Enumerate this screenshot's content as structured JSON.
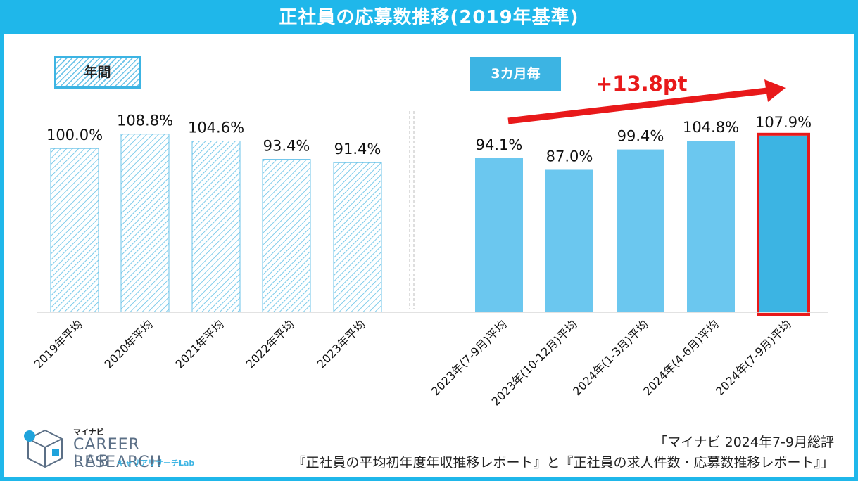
{
  "title": "正社員の応募数推移(2019年基準)",
  "legend": {
    "annual": "年間",
    "quarterly": "3カ月毎"
  },
  "delta_label": "+13.8pt",
  "source": {
    "line1": "「マイナビ 2024年7-9月総評",
    "line2": "『正社員の平均初年度年収推移レポート』と『正社員の求人件数・応募数推移レポート』」"
  },
  "logo": {
    "brand": "マイナビ",
    "name1": "CAREER RESEARCH",
    "name2": "LAB",
    "kana": "キャリアリサーチLab"
  },
  "colors": {
    "accent": "#1fb7ea",
    "quarter_bar": "#6bc7ef",
    "highlight_bar": "#3cb4e3",
    "highlight_border": "#e8191a",
    "arrow": "#e8191a"
  },
  "chart_data": {
    "type": "bar",
    "title": "正社員の応募数推移(2019年基準)",
    "xlabel": "",
    "ylabel": "",
    "ylim": [
      0,
      110
    ],
    "grid": false,
    "categories": [
      "2019年平均",
      "2020年平均",
      "2021年平均",
      "2022年平均",
      "2023年平均",
      "2023年(7-9月)平均",
      "2023年(10-12月)平均",
      "2024年(1-3月)平均",
      "2024年(4-6月)平均",
      "2024年(7-9月)平均"
    ],
    "values": [
      100.0,
      108.8,
      104.6,
      93.4,
      91.4,
      94.1,
      87.0,
      99.4,
      104.8,
      107.9
    ],
    "data_labels": [
      "100.0%",
      "108.8%",
      "104.6%",
      "93.4%",
      "91.4%",
      "94.1%",
      "87.0%",
      "99.4%",
      "104.8%",
      "107.9%"
    ],
    "groups": [
      "年間",
      "年間",
      "年間",
      "年間",
      "年間",
      "3カ月毎",
      "3カ月毎",
      "3カ月毎",
      "3カ月毎",
      "3カ月毎"
    ],
    "highlight_index": 9
  }
}
